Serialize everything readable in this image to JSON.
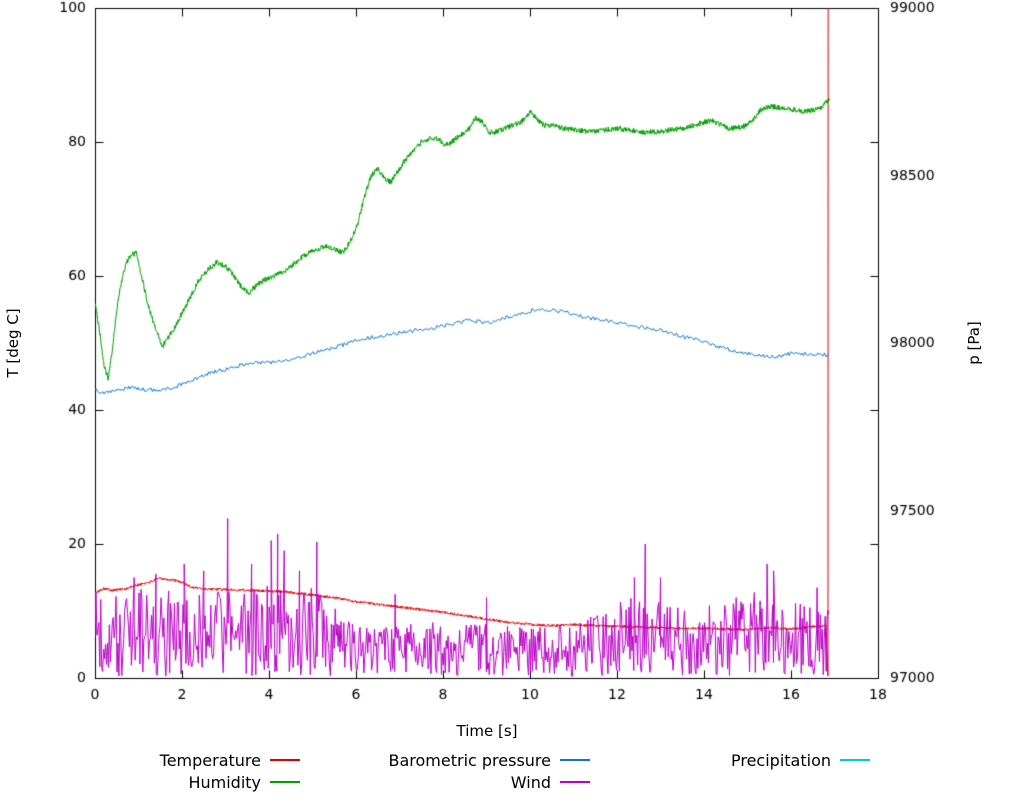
{
  "chart_data": {
    "type": "line",
    "title": "",
    "xlabel": "Time [s]",
    "ylabel_left": "T [deg C]",
    "ylabel_right": "p [Pa]",
    "xlim": [
      0,
      18
    ],
    "ylim_left": [
      0,
      100
    ],
    "ylim_right": [
      97000,
      99000
    ],
    "x_ticks": [
      0,
      2,
      4,
      6,
      8,
      10,
      12,
      14,
      16,
      18
    ],
    "y_ticks_left": [
      0,
      20,
      40,
      60,
      80,
      100
    ],
    "y_ticks_right": [
      97000,
      97500,
      98000,
      98500,
      99000
    ],
    "grid": false,
    "legend_position": "bottom",
    "background": "#ffffff",
    "axis_color": "#000000",
    "series": [
      {
        "name": "Temperature",
        "color": "#e00000",
        "axis": "left",
        "style": "noisy-line",
        "noise": 0.2,
        "sample_dt": 0.01,
        "keypoints": [
          [
            0,
            12.6
          ],
          [
            0.2,
            13.4
          ],
          [
            0.4,
            13.1
          ],
          [
            0.7,
            13.3
          ],
          [
            1,
            13.9
          ],
          [
            1.3,
            14.4
          ],
          [
            1.5,
            14.9
          ],
          [
            1.8,
            14.6
          ],
          [
            2,
            14.3
          ],
          [
            2.2,
            13.6
          ],
          [
            2.5,
            13.3
          ],
          [
            3,
            13.2
          ],
          [
            3.5,
            13.1
          ],
          [
            4,
            13
          ],
          [
            4.5,
            12.8
          ],
          [
            5,
            12.4
          ],
          [
            5.5,
            12
          ],
          [
            6,
            11.4
          ],
          [
            6.5,
            11
          ],
          [
            7,
            10.6
          ],
          [
            7.5,
            10.2
          ],
          [
            8,
            9.8
          ],
          [
            8.5,
            9.3
          ],
          [
            9,
            8.8
          ],
          [
            9.5,
            8.3
          ],
          [
            10,
            8
          ],
          [
            10.5,
            7.8
          ],
          [
            11,
            8
          ],
          [
            11.5,
            7.8
          ],
          [
            12,
            7.7
          ],
          [
            12.5,
            7.6
          ],
          [
            13,
            7.5
          ],
          [
            13.5,
            7.4
          ],
          [
            14,
            7.4
          ],
          [
            14.5,
            7.3
          ],
          [
            15,
            7.2
          ],
          [
            15.5,
            7.5
          ],
          [
            16,
            7.3
          ],
          [
            16.4,
            7.6
          ],
          [
            16.8,
            7.8
          ]
        ],
        "end_spike": {
          "t": 16.85,
          "low": 0.3,
          "high": 100
        }
      },
      {
        "name": "Humidity",
        "color": "#00a000",
        "axis": "left",
        "style": "noisy-line",
        "noise": 0.4,
        "sample_dt": 0.01,
        "keypoints": [
          [
            0,
            56
          ],
          [
            0.1,
            52
          ],
          [
            0.2,
            47
          ],
          [
            0.3,
            44.5
          ],
          [
            0.4,
            49
          ],
          [
            0.5,
            55
          ],
          [
            0.6,
            59
          ],
          [
            0.7,
            61.5
          ],
          [
            0.8,
            63
          ],
          [
            0.95,
            63.5
          ],
          [
            1.1,
            59
          ],
          [
            1.25,
            55
          ],
          [
            1.4,
            52
          ],
          [
            1.55,
            49.5
          ],
          [
            1.7,
            51
          ],
          [
            1.85,
            52.5
          ],
          [
            2,
            54.5
          ],
          [
            2.2,
            57
          ],
          [
            2.4,
            59.5
          ],
          [
            2.6,
            61
          ],
          [
            2.8,
            62
          ],
          [
            3,
            61.5
          ],
          [
            3.2,
            60
          ],
          [
            3.4,
            58
          ],
          [
            3.55,
            57.5
          ],
          [
            3.7,
            58.5
          ],
          [
            3.9,
            59.5
          ],
          [
            4.1,
            60
          ],
          [
            4.3,
            60.5
          ],
          [
            4.5,
            61.5
          ],
          [
            4.7,
            62.5
          ],
          [
            4.9,
            63.5
          ],
          [
            5.1,
            64
          ],
          [
            5.3,
            64.5
          ],
          [
            5.5,
            64
          ],
          [
            5.7,
            63.5
          ],
          [
            5.9,
            65.5
          ],
          [
            6.05,
            68
          ],
          [
            6.2,
            72
          ],
          [
            6.35,
            75
          ],
          [
            6.5,
            76
          ],
          [
            6.65,
            74.5
          ],
          [
            6.8,
            74
          ],
          [
            6.95,
            75.5
          ],
          [
            7.1,
            77
          ],
          [
            7.3,
            78.5
          ],
          [
            7.5,
            80
          ],
          [
            7.7,
            80.5
          ],
          [
            7.9,
            80.5
          ],
          [
            8.05,
            79.5
          ],
          [
            8.2,
            80
          ],
          [
            8.4,
            81
          ],
          [
            8.6,
            82
          ],
          [
            8.75,
            83.5
          ],
          [
            8.9,
            83
          ],
          [
            9.05,
            81.5
          ],
          [
            9.2,
            81.5
          ],
          [
            9.4,
            82
          ],
          [
            9.6,
            82.5
          ],
          [
            9.8,
            83
          ],
          [
            10,
            84.5
          ],
          [
            10.15,
            83.5
          ],
          [
            10.3,
            82.5
          ],
          [
            10.5,
            82.5
          ],
          [
            10.8,
            82
          ],
          [
            11.1,
            81.8
          ],
          [
            11.4,
            81.5
          ],
          [
            11.7,
            81.8
          ],
          [
            12,
            82
          ],
          [
            12.3,
            81.8
          ],
          [
            12.6,
            81.5
          ],
          [
            12.9,
            81.5
          ],
          [
            13.2,
            81.8
          ],
          [
            13.5,
            82
          ],
          [
            13.8,
            82.5
          ],
          [
            14,
            83
          ],
          [
            14.2,
            83.2
          ],
          [
            14.4,
            82.5
          ],
          [
            14.6,
            82
          ],
          [
            14.8,
            82.2
          ],
          [
            15,
            82.5
          ],
          [
            15.15,
            83.5
          ],
          [
            15.3,
            84.8
          ],
          [
            15.5,
            85.3
          ],
          [
            15.7,
            85.2
          ],
          [
            15.9,
            85
          ],
          [
            16.1,
            84.8
          ],
          [
            16.3,
            84.5
          ],
          [
            16.5,
            84.8
          ],
          [
            16.7,
            85.2
          ],
          [
            16.88,
            86.3
          ]
        ]
      },
      {
        "name": "Barometric pressure",
        "color": "#0e76d6",
        "axis": "right",
        "style": "noisy-line",
        "noise": 6,
        "sample_dt": 0.03,
        "keypoints": [
          [
            0,
            97858
          ],
          [
            0.3,
            97852
          ],
          [
            0.6,
            97862
          ],
          [
            0.9,
            97868
          ],
          [
            1.2,
            97860
          ],
          [
            1.5,
            97858
          ],
          [
            1.8,
            97868
          ],
          [
            2.1,
            97882
          ],
          [
            2.4,
            97900
          ],
          [
            2.7,
            97912
          ],
          [
            3,
            97920
          ],
          [
            3.3,
            97932
          ],
          [
            3.6,
            97940
          ],
          [
            3.9,
            97942
          ],
          [
            4.2,
            97944
          ],
          [
            4.5,
            97950
          ],
          [
            4.8,
            97962
          ],
          [
            5.1,
            97972
          ],
          [
            5.4,
            97984
          ],
          [
            5.7,
            97994
          ],
          [
            6,
            98008
          ],
          [
            6.3,
            98016
          ],
          [
            6.6,
            98022
          ],
          [
            6.9,
            98028
          ],
          [
            7.2,
            98034
          ],
          [
            7.5,
            98040
          ],
          [
            7.8,
            98046
          ],
          [
            8.1,
            98052
          ],
          [
            8.4,
            98062
          ],
          [
            8.6,
            98070
          ],
          [
            8.8,
            98064
          ],
          [
            9,
            98060
          ],
          [
            9.3,
            98070
          ],
          [
            9.6,
            98082
          ],
          [
            9.9,
            98092
          ],
          [
            10.1,
            98100
          ],
          [
            10.3,
            98102
          ],
          [
            10.5,
            98098
          ],
          [
            10.8,
            98092
          ],
          [
            11.1,
            98082
          ],
          [
            11.4,
            98074
          ],
          [
            11.7,
            98068
          ],
          [
            12,
            98060
          ],
          [
            12.3,
            98052
          ],
          [
            12.6,
            98046
          ],
          [
            12.9,
            98040
          ],
          [
            13.2,
            98032
          ],
          [
            13.5,
            98020
          ],
          [
            13.8,
            98010
          ],
          [
            14.1,
            97998
          ],
          [
            14.4,
            97986
          ],
          [
            14.7,
            97976
          ],
          [
            15,
            97970
          ],
          [
            15.3,
            97962
          ],
          [
            15.6,
            97958
          ],
          [
            15.9,
            97966
          ],
          [
            16.2,
            97970
          ],
          [
            16.5,
            97964
          ],
          [
            16.88,
            97966
          ]
        ]
      },
      {
        "name": "Wind",
        "color": "#bc00c8",
        "axis": "left",
        "style": "noise-band",
        "t_end": 16.88,
        "sample_dt": 0.022,
        "min": 0.2,
        "envelope": [
          [
            0,
            13
          ],
          [
            0.5,
            13
          ],
          [
            1,
            13.5
          ],
          [
            1.5,
            13
          ],
          [
            2,
            13.5
          ],
          [
            2.5,
            13
          ],
          [
            3,
            13.5
          ],
          [
            3.5,
            13
          ],
          [
            4,
            14
          ],
          [
            4.5,
            13
          ],
          [
            5,
            13.5
          ],
          [
            5.4,
            12
          ],
          [
            5.8,
            9
          ],
          [
            6.2,
            8
          ],
          [
            7,
            8
          ],
          [
            8,
            8.5
          ],
          [
            9,
            8
          ],
          [
            10,
            8
          ],
          [
            10.8,
            8
          ],
          [
            11.3,
            9
          ],
          [
            11.8,
            11
          ],
          [
            12.2,
            12
          ],
          [
            12.8,
            12
          ],
          [
            13.4,
            11
          ],
          [
            14,
            11
          ],
          [
            14.6,
            12
          ],
          [
            15.2,
            13
          ],
          [
            15.8,
            12
          ],
          [
            16.4,
            12
          ],
          [
            16.88,
            12
          ]
        ],
        "spikes": [
          [
            0.9,
            15
          ],
          [
            1.4,
            15.5
          ],
          [
            2.05,
            17
          ],
          [
            2.5,
            16
          ],
          [
            3.05,
            23.8
          ],
          [
            3.6,
            17
          ],
          [
            4.05,
            20.5
          ],
          [
            4.2,
            21.5
          ],
          [
            4.35,
            19
          ],
          [
            4.7,
            16
          ],
          [
            5.1,
            20.3
          ],
          [
            6.9,
            12.5
          ],
          [
            9,
            12
          ],
          [
            12.4,
            15
          ],
          [
            12.65,
            20
          ],
          [
            13,
            15
          ],
          [
            15.45,
            17
          ],
          [
            15.6,
            16
          ],
          [
            16.6,
            13.5
          ]
        ]
      },
      {
        "name": "Precipitation",
        "color": "#00cccc",
        "axis": "left",
        "style": "hidden",
        "note": "constant 0, not visible inside plot area"
      }
    ]
  }
}
